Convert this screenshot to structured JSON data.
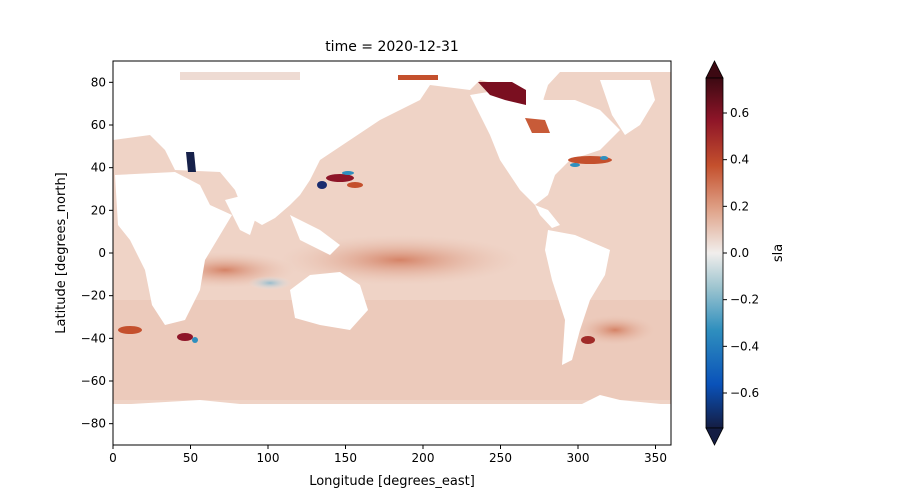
{
  "chart_data": {
    "type": "heatmap",
    "title": "time = 2020-12-31",
    "xlabel": "Longitude [degrees_east]",
    "ylabel": "Latitude [degrees_north]",
    "xlim": [
      0,
      360
    ],
    "ylim": [
      -90,
      90
    ],
    "x_ticks": [
      0,
      50,
      100,
      150,
      200,
      250,
      300,
      350
    ],
    "y_ticks": [
      -80,
      -60,
      -40,
      -20,
      0,
      20,
      40,
      60,
      80
    ],
    "colorbar": {
      "label": "sla",
      "range": [
        -0.75,
        0.75
      ],
      "extend": "both",
      "ticks": [
        -0.6,
        -0.4,
        -0.2,
        0.0,
        0.2,
        0.4,
        0.6
      ],
      "tick_labels": [
        "−0.6",
        "−0.4",
        "−0.2",
        "0.0",
        "0.2",
        "0.4",
        "0.6"
      ],
      "colors": [
        "#141d43",
        "#0a52b9",
        "#2f8fbe",
        "#9cc4cf",
        "#f1eeec",
        "#e0a58c",
        "#c4502d",
        "#8e1528",
        "#3c0912"
      ]
    },
    "grid": false
  }
}
